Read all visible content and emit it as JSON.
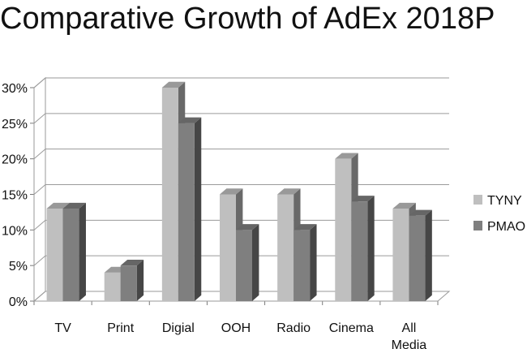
{
  "chart_data": {
    "type": "bar",
    "title": "Comparative Growth of AdEx 2018P",
    "categories": [
      [
        "TV"
      ],
      [
        "Print"
      ],
      [
        "Digial"
      ],
      [
        "OOH"
      ],
      [
        "Radio"
      ],
      [
        "Cinema"
      ],
      [
        "All",
        "Media"
      ]
    ],
    "series": [
      {
        "name": "TYNY",
        "values": [
          13,
          4,
          30,
          15,
          15,
          20,
          13
        ],
        "color": "#bfbfbf"
      },
      {
        "name": "PMAO",
        "values": [
          13,
          5,
          25,
          10,
          10,
          14,
          12
        ],
        "color": "#7f7f7f"
      }
    ],
    "y_ticks": [
      "0%",
      "5%",
      "10%",
      "15%",
      "20%",
      "25%",
      "30%"
    ],
    "ylim": [
      0,
      30
    ],
    "grid": true,
    "three_d": true,
    "legend_position": "right"
  }
}
